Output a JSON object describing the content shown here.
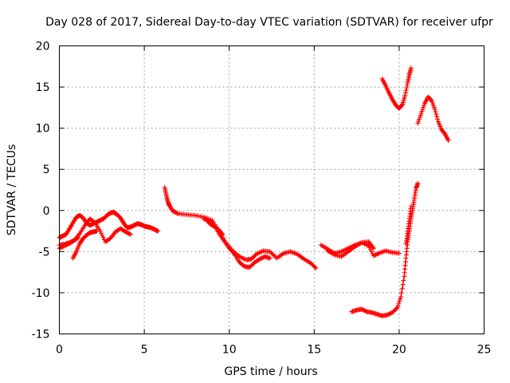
{
  "chart_data": {
    "type": "scatter",
    "title": "Day 028 of 2017, Sidereal Day-to-day VTEC variation (SDTVAR) for receiver ufpr",
    "xlabel": "GPS time / hours",
    "ylabel": "SDTVAR / TECUs",
    "xlim": [
      0,
      25
    ],
    "ylim": [
      -15,
      20
    ],
    "xticks": [
      0,
      5,
      10,
      15,
      20,
      25
    ],
    "yticks": [
      -15,
      -10,
      -5,
      0,
      5,
      10,
      15,
      20
    ],
    "grid": true,
    "marker": "plus",
    "color": "#ff0000",
    "series": [
      {
        "x": [
          0.0,
          0.2,
          0.4,
          0.6,
          0.8,
          1.0,
          1.2,
          1.4,
          1.6,
          1.8,
          2.0,
          2.2,
          2.4,
          2.6,
          2.8,
          3.0,
          3.2,
          3.4,
          3.6,
          3.8,
          4.0,
          4.2,
          4.4,
          4.6,
          4.8,
          5.0,
          5.2,
          5.4,
          5.6,
          5.8
        ],
        "y": [
          -3.3,
          -3.1,
          -2.9,
          -2.2,
          -1.5,
          -0.8,
          -0.6,
          -0.9,
          -1.5,
          -1.8,
          -1.6,
          -1.4,
          -1.2,
          -1.0,
          -0.6,
          -0.3,
          -0.2,
          -0.5,
          -0.9,
          -1.6,
          -2.1,
          -2.0,
          -1.8,
          -1.6,
          -1.7,
          -1.9,
          -2.0,
          -2.1,
          -2.3,
          -2.5
        ]
      },
      {
        "x": [
          0.0,
          0.3,
          0.6,
          0.9,
          1.2,
          1.5,
          1.8,
          2.1,
          2.4,
          2.7,
          3.0,
          3.3,
          3.6,
          3.9,
          4.2
        ],
        "y": [
          -4.6,
          -4.3,
          -4.0,
          -3.6,
          -2.8,
          -1.8,
          -1.0,
          -1.5,
          -2.5,
          -3.8,
          -3.4,
          -2.6,
          -2.2,
          -2.6,
          -2.9
        ]
      },
      {
        "x": [
          0.8,
          1.0,
          1.2,
          1.4,
          1.6,
          1.8,
          2.0,
          2.2
        ],
        "y": [
          -5.8,
          -5.0,
          -4.0,
          -3.4,
          -3.0,
          -2.7,
          -2.6,
          -2.5
        ]
      },
      {
        "x": [
          0.0,
          0.3,
          0.6,
          0.9,
          1.1
        ],
        "y": [
          -4.2,
          -4.1,
          -3.9,
          -3.6,
          -3.3
        ]
      },
      {
        "x": [
          6.2,
          6.3,
          6.4,
          6.5,
          6.7,
          7.0,
          7.5,
          8.0,
          8.5,
          9.0,
          9.4,
          9.8,
          10.2,
          10.6,
          11.0,
          11.3,
          11.6,
          12.0,
          12.4,
          12.8,
          13.2,
          13.6,
          14.0,
          14.4,
          14.8,
          15.1
        ],
        "y": [
          2.8,
          1.8,
          1.0,
          0.5,
          -0.1,
          -0.4,
          -0.5,
          -0.6,
          -0.8,
          -1.2,
          -2.5,
          -3.9,
          -4.9,
          -5.6,
          -6.0,
          -5.9,
          -5.3,
          -4.9,
          -5.0,
          -5.8,
          -5.2,
          -5.0,
          -5.3,
          -5.9,
          -6.4,
          -7.0
        ]
      },
      {
        "x": [
          8.5,
          8.8,
          9.1,
          9.4,
          9.7,
          10.0,
          10.3,
          10.6,
          10.9,
          11.2,
          11.5,
          11.8,
          12.1,
          12.4
        ],
        "y": [
          -1.0,
          -1.3,
          -1.8,
          -2.8,
          -3.7,
          -4.6,
          -5.3,
          -6.3,
          -6.8,
          -6.9,
          -6.3,
          -5.9,
          -5.6,
          -5.8
        ]
      },
      {
        "x": [
          8.8,
          9.0,
          9.2,
          9.4,
          9.6
        ],
        "y": [
          -1.5,
          -1.8,
          -2.0,
          -2.4,
          -2.9
        ]
      },
      {
        "x": [
          15.4,
          15.8,
          16.2,
          16.6,
          17.0,
          17.4,
          17.8,
          18.2,
          18.5,
          18.8,
          19.2,
          19.6,
          20.0
        ],
        "y": [
          -4.2,
          -4.7,
          -5.2,
          -5.0,
          -4.6,
          -4.2,
          -3.9,
          -4.3,
          -5.5,
          -5.2,
          -4.9,
          -5.1,
          -5.2
        ]
      },
      {
        "x": [
          15.8,
          16.2,
          16.6,
          17.0,
          17.4,
          17.8,
          18.2,
          18.5
        ],
        "y": [
          -4.9,
          -5.4,
          -5.6,
          -5.0,
          -4.4,
          -3.9,
          -3.8,
          -4.6
        ]
      },
      {
        "x": [
          17.2,
          17.5,
          17.8,
          18.1,
          18.4,
          18.7,
          19.0,
          19.3,
          19.6,
          19.9,
          20.1,
          20.3,
          20.4,
          20.5,
          20.6,
          20.7,
          20.8,
          20.9,
          21.0,
          21.1
        ],
        "y": [
          -12.3,
          -12.1,
          -12.0,
          -12.3,
          -12.4,
          -12.6,
          -12.8,
          -12.7,
          -12.4,
          -11.8,
          -10.5,
          -8.0,
          -5.8,
          -3.8,
          -2.5,
          -1.0,
          0.2,
          1.5,
          2.7,
          3.3
        ]
      },
      {
        "x": [
          20.4,
          20.5,
          20.6,
          20.7
        ],
        "y": [
          -4.0,
          -2.5,
          -1.0,
          0.5
        ]
      },
      {
        "x": [
          19.0,
          19.2,
          19.4,
          19.6,
          19.8,
          20.0,
          20.2,
          20.35,
          20.5,
          20.6,
          20.7
        ],
        "y": [
          16.0,
          15.2,
          14.3,
          13.5,
          12.8,
          12.4,
          12.9,
          14.0,
          15.5,
          16.5,
          17.3
        ]
      },
      {
        "x": [
          21.1,
          21.3,
          21.5,
          21.7,
          21.9,
          22.1,
          22.3,
          22.5,
          22.7,
          22.9
        ],
        "y": [
          10.6,
          11.8,
          13.0,
          13.8,
          13.4,
          12.3,
          10.8,
          9.8,
          9.3,
          8.5
        ]
      }
    ]
  }
}
